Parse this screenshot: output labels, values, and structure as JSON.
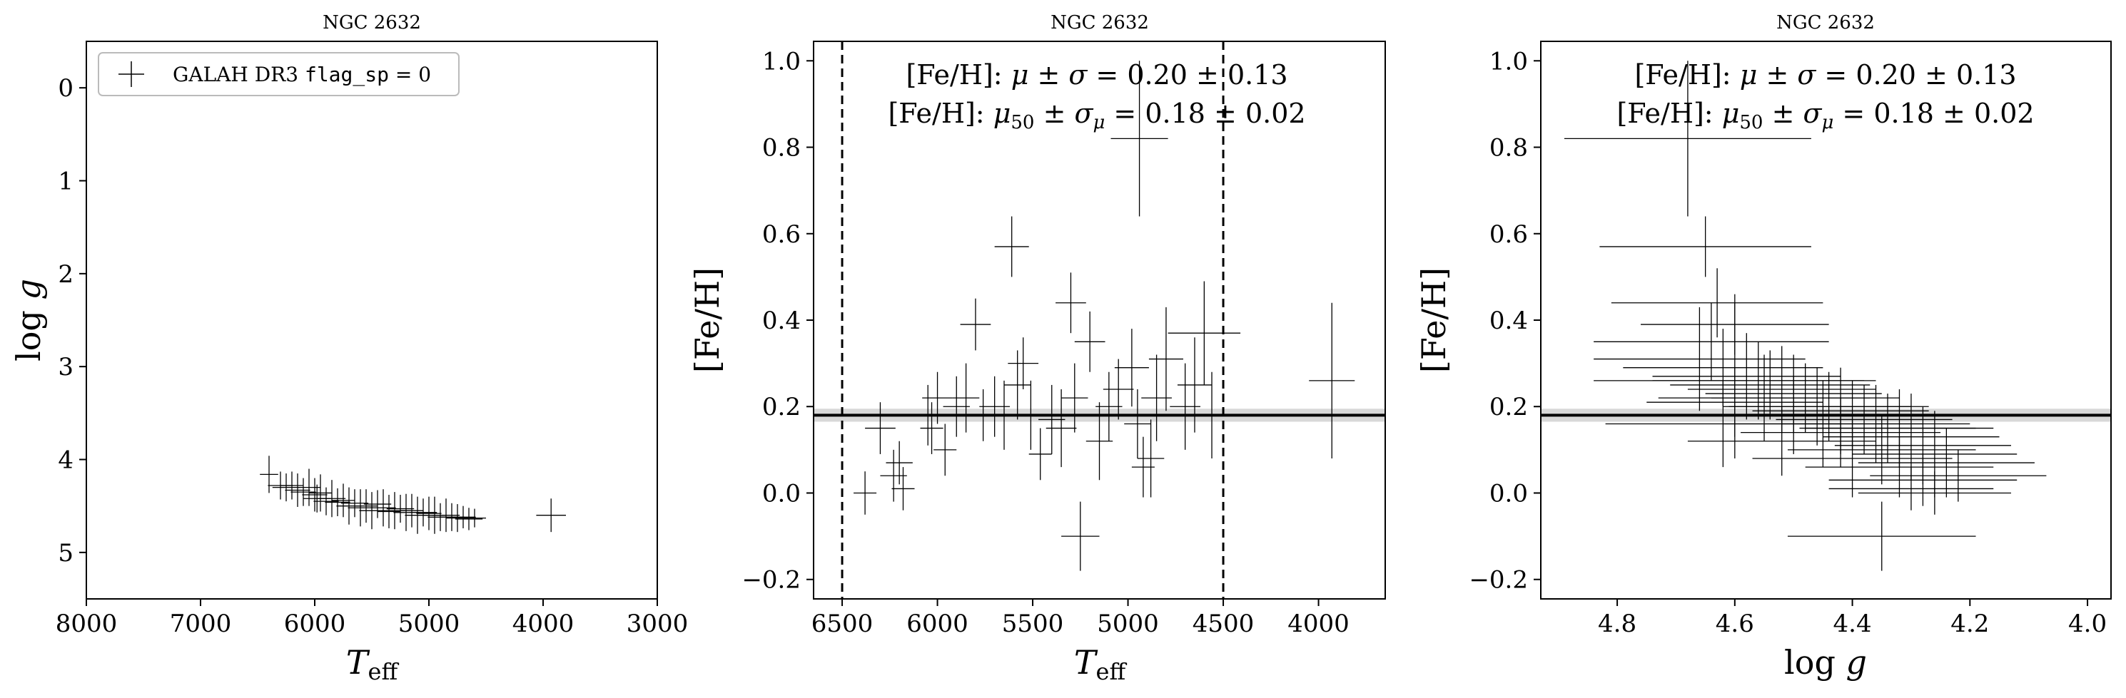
{
  "chart_data": [
    {
      "type": "scatter",
      "title": "NGC 2632",
      "xlabel": "T_eff",
      "ylabel": "log g",
      "xlim": [
        8000,
        3000
      ],
      "ylim": [
        5.5,
        -0.5
      ],
      "xticks": [
        8000,
        7000,
        6000,
        5000,
        4000,
        3000
      ],
      "yticks": [
        0,
        1,
        2,
        3,
        4,
        5
      ],
      "legend": {
        "location": "upper-left",
        "label_prefix": "GALAH DR3 ",
        "label_code": "flag_sp",
        "label_suffix": " = 0"
      },
      "series": [
        {
          "name": "GALAH DR3 flag_sp = 0",
          "points": [
            {
              "x": 6400,
              "y": 4.16,
              "xerr": 80,
              "yerr": 0.2
            },
            {
              "x": 6300,
              "y": 4.28,
              "xerr": 110,
              "yerr": 0.15
            },
            {
              "x": 6250,
              "y": 4.3,
              "xerr": 120,
              "yerr": 0.15
            },
            {
              "x": 6200,
              "y": 4.28,
              "xerr": 100,
              "yerr": 0.15
            },
            {
              "x": 6150,
              "y": 4.33,
              "xerr": 110,
              "yerr": 0.18
            },
            {
              "x": 6100,
              "y": 4.35,
              "xerr": 110,
              "yerr": 0.15
            },
            {
              "x": 6050,
              "y": 4.3,
              "xerr": 100,
              "yerr": 0.2
            },
            {
              "x": 6000,
              "y": 4.38,
              "xerr": 110,
              "yerr": 0.18
            },
            {
              "x": 5980,
              "y": 4.42,
              "xerr": 120,
              "yerr": 0.15
            },
            {
              "x": 5950,
              "y": 4.36,
              "xerr": 100,
              "yerr": 0.2
            },
            {
              "x": 5900,
              "y": 4.45,
              "xerr": 110,
              "yerr": 0.15
            },
            {
              "x": 5850,
              "y": 4.42,
              "xerr": 120,
              "yerr": 0.2
            },
            {
              "x": 5800,
              "y": 4.46,
              "xerr": 110,
              "yerr": 0.15
            },
            {
              "x": 5750,
              "y": 4.44,
              "xerr": 100,
              "yerr": 0.18
            },
            {
              "x": 5700,
              "y": 4.5,
              "xerr": 110,
              "yerr": 0.2
            },
            {
              "x": 5650,
              "y": 4.47,
              "xerr": 120,
              "yerr": 0.15
            },
            {
              "x": 5600,
              "y": 4.52,
              "xerr": 110,
              "yerr": 0.2
            },
            {
              "x": 5550,
              "y": 4.5,
              "xerr": 100,
              "yerr": 0.18
            },
            {
              "x": 5500,
              "y": 4.55,
              "xerr": 110,
              "yerr": 0.2
            },
            {
              "x": 5450,
              "y": 4.48,
              "xerr": 120,
              "yerr": 0.15
            },
            {
              "x": 5400,
              "y": 4.52,
              "xerr": 110,
              "yerr": 0.2
            },
            {
              "x": 5350,
              "y": 4.56,
              "xerr": 100,
              "yerr": 0.18
            },
            {
              "x": 5300,
              "y": 4.55,
              "xerr": 110,
              "yerr": 0.2
            },
            {
              "x": 5250,
              "y": 4.53,
              "xerr": 120,
              "yerr": 0.15
            },
            {
              "x": 5200,
              "y": 4.57,
              "xerr": 110,
              "yerr": 0.2
            },
            {
              "x": 5150,
              "y": 4.55,
              "xerr": 100,
              "yerr": 0.18
            },
            {
              "x": 5100,
              "y": 4.6,
              "xerr": 110,
              "yerr": 0.2
            },
            {
              "x": 5050,
              "y": 4.57,
              "xerr": 120,
              "yerr": 0.15
            },
            {
              "x": 5000,
              "y": 4.58,
              "xerr": 110,
              "yerr": 0.18
            },
            {
              "x": 4950,
              "y": 4.6,
              "xerr": 100,
              "yerr": 0.2
            },
            {
              "x": 4900,
              "y": 4.62,
              "xerr": 110,
              "yerr": 0.15
            },
            {
              "x": 4850,
              "y": 4.6,
              "xerr": 120,
              "yerr": 0.18
            },
            {
              "x": 4800,
              "y": 4.62,
              "xerr": 110,
              "yerr": 0.15
            },
            {
              "x": 4750,
              "y": 4.63,
              "xerr": 100,
              "yerr": 0.15
            },
            {
              "x": 4700,
              "y": 4.62,
              "xerr": 110,
              "yerr": 0.12
            },
            {
              "x": 4650,
              "y": 4.64,
              "xerr": 120,
              "yerr": 0.12
            },
            {
              "x": 4600,
              "y": 4.63,
              "xerr": 100,
              "yerr": 0.1
            },
            {
              "x": 3930,
              "y": 4.6,
              "xerr": 130,
              "yerr": 0.18
            }
          ]
        }
      ]
    },
    {
      "type": "scatter",
      "title": "NGC 2632",
      "xlabel": "T_eff",
      "ylabel": "[Fe/H]",
      "xlim": [
        6650,
        3650
      ],
      "ylim": [
        -0.245,
        1.045
      ],
      "xticks": [
        6500,
        6000,
        5500,
        5000,
        4500,
        4000
      ],
      "yticks": [
        -0.2,
        0.0,
        0.2,
        0.4,
        0.6,
        0.8,
        1.0
      ],
      "annotations": [
        "[Fe/H]: μ ± σ = 0.20 ± 0.13",
        "[Fe/H]: μ50 ± σμ = 0.18 ± 0.02"
      ],
      "median": 0.18,
      "median_band": [
        0.165,
        0.195
      ],
      "vlines": [
        6500,
        4500
      ],
      "series": [
        {
          "points": [
            {
              "x": 6380,
              "y": 0.0,
              "xerr": 60,
              "yerr": 0.05
            },
            {
              "x": 6300,
              "y": 0.15,
              "xerr": 80,
              "yerr": 0.06
            },
            {
              "x": 6230,
              "y": 0.04,
              "xerr": 70,
              "yerr": 0.06
            },
            {
              "x": 6200,
              "y": 0.07,
              "xerr": 70,
              "yerr": 0.05
            },
            {
              "x": 6180,
              "y": 0.01,
              "xerr": 60,
              "yerr": 0.05
            },
            {
              "x": 6050,
              "y": 0.18,
              "xerr": 70,
              "yerr": 0.07
            },
            {
              "x": 6030,
              "y": 0.15,
              "xerr": 60,
              "yerr": 0.06
            },
            {
              "x": 6000,
              "y": 0.22,
              "xerr": 80,
              "yerr": 0.06
            },
            {
              "x": 5960,
              "y": 0.1,
              "xerr": 60,
              "yerr": 0.06
            },
            {
              "x": 5900,
              "y": 0.2,
              "xerr": 70,
              "yerr": 0.07
            },
            {
              "x": 5850,
              "y": 0.22,
              "xerr": 70,
              "yerr": 0.08
            },
            {
              "x": 5800,
              "y": 0.39,
              "xerr": 80,
              "yerr": 0.06
            },
            {
              "x": 5760,
              "y": 0.18,
              "xerr": 60,
              "yerr": 0.06
            },
            {
              "x": 5700,
              "y": 0.2,
              "xerr": 80,
              "yerr": 0.07
            },
            {
              "x": 5650,
              "y": 0.18,
              "xerr": 70,
              "yerr": 0.08
            },
            {
              "x": 5610,
              "y": 0.57,
              "xerr": 90,
              "yerr": 0.07
            },
            {
              "x": 5580,
              "y": 0.25,
              "xerr": 70,
              "yerr": 0.08
            },
            {
              "x": 5550,
              "y": 0.3,
              "xerr": 80,
              "yerr": 0.06
            },
            {
              "x": 5510,
              "y": 0.18,
              "xerr": 70,
              "yerr": 0.08
            },
            {
              "x": 5460,
              "y": 0.09,
              "xerr": 60,
              "yerr": 0.06
            },
            {
              "x": 5400,
              "y": 0.17,
              "xerr": 70,
              "yerr": 0.08
            },
            {
              "x": 5350,
              "y": 0.15,
              "xerr": 80,
              "yerr": 0.09
            },
            {
              "x": 5300,
              "y": 0.44,
              "xerr": 80,
              "yerr": 0.07
            },
            {
              "x": 5280,
              "y": 0.22,
              "xerr": 70,
              "yerr": 0.08
            },
            {
              "x": 5250,
              "y": -0.1,
              "xerr": 100,
              "yerr": 0.08
            },
            {
              "x": 5200,
              "y": 0.35,
              "xerr": 80,
              "yerr": 0.07
            },
            {
              "x": 5150,
              "y": 0.12,
              "xerr": 70,
              "yerr": 0.09
            },
            {
              "x": 5100,
              "y": 0.2,
              "xerr": 70,
              "yerr": 0.08
            },
            {
              "x": 5050,
              "y": 0.24,
              "xerr": 80,
              "yerr": 0.07
            },
            {
              "x": 4980,
              "y": 0.29,
              "xerr": 90,
              "yerr": 0.09
            },
            {
              "x": 4950,
              "y": 0.16,
              "xerr": 70,
              "yerr": 0.08
            },
            {
              "x": 4940,
              "y": 0.82,
              "xerr": 150,
              "yerr": 0.18
            },
            {
              "x": 4920,
              "y": 0.06,
              "xerr": 60,
              "yerr": 0.07
            },
            {
              "x": 4880,
              "y": 0.08,
              "xerr": 70,
              "yerr": 0.09
            },
            {
              "x": 4850,
              "y": 0.22,
              "xerr": 80,
              "yerr": 0.1
            },
            {
              "x": 4800,
              "y": 0.31,
              "xerr": 90,
              "yerr": 0.12
            },
            {
              "x": 4700,
              "y": 0.2,
              "xerr": 80,
              "yerr": 0.1
            },
            {
              "x": 4650,
              "y": 0.25,
              "xerr": 90,
              "yerr": 0.11
            },
            {
              "x": 4600,
              "y": 0.37,
              "xerr": 190,
              "yerr": 0.12
            },
            {
              "x": 4560,
              "y": 0.18,
              "xerr": 80,
              "yerr": 0.1
            },
            {
              "x": 3930,
              "y": 0.26,
              "xerr": 120,
              "yerr": 0.18
            }
          ]
        }
      ]
    },
    {
      "type": "scatter",
      "title": "NGC 2632",
      "xlabel": "log g",
      "ylabel": "[Fe/H]",
      "xlim": [
        4.93,
        3.96
      ],
      "ylim": [
        -0.245,
        1.045
      ],
      "xticks": [
        4.8,
        4.6,
        4.4,
        4.2,
        4.0
      ],
      "yticks": [
        -0.2,
        0.0,
        0.2,
        0.4,
        0.6,
        0.8,
        1.0
      ],
      "annotations": [
        "[Fe/H]: μ ± σ = 0.20 ± 0.13",
        "[Fe/H]: μ50 ± σμ = 0.18 ± 0.02"
      ],
      "median": 0.18,
      "median_band": [
        0.165,
        0.195
      ],
      "series": [
        {
          "points": [
            {
              "x": 4.68,
              "y": 0.82,
              "xerr": 0.21,
              "yerr": 0.18
            },
            {
              "x": 4.65,
              "y": 0.57,
              "xerr": 0.18,
              "yerr": 0.07
            },
            {
              "x": 4.63,
              "y": 0.44,
              "xerr": 0.18,
              "yerr": 0.08
            },
            {
              "x": 4.6,
              "y": 0.39,
              "xerr": 0.16,
              "yerr": 0.07
            },
            {
              "x": 4.64,
              "y": 0.35,
              "xerr": 0.2,
              "yerr": 0.09
            },
            {
              "x": 4.66,
              "y": 0.31,
              "xerr": 0.18,
              "yerr": 0.12
            },
            {
              "x": 4.62,
              "y": 0.29,
              "xerr": 0.17,
              "yerr": 0.09
            },
            {
              "x": 4.58,
              "y": 0.27,
              "xerr": 0.16,
              "yerr": 0.1
            },
            {
              "x": 4.56,
              "y": 0.26,
              "xerr": 0.18,
              "yerr": 0.09
            },
            {
              "x": 4.54,
              "y": 0.25,
              "xerr": 0.17,
              "yerr": 0.08
            },
            {
              "x": 4.52,
              "y": 0.24,
              "xerr": 0.16,
              "yerr": 0.1
            },
            {
              "x": 4.5,
              "y": 0.23,
              "xerr": 0.15,
              "yerr": 0.09
            },
            {
              "x": 4.48,
              "y": 0.22,
              "xerr": 0.16,
              "yerr": 0.08
            },
            {
              "x": 4.55,
              "y": 0.22,
              "xerr": 0.18,
              "yerr": 0.1
            },
            {
              "x": 4.6,
              "y": 0.21,
              "xerr": 0.15,
              "yerr": 0.08
            },
            {
              "x": 4.46,
              "y": 0.2,
              "xerr": 0.16,
              "yerr": 0.09
            },
            {
              "x": 4.44,
              "y": 0.2,
              "xerr": 0.17,
              "yerr": 0.08
            },
            {
              "x": 4.42,
              "y": 0.19,
              "xerr": 0.15,
              "yerr": 0.1
            },
            {
              "x": 4.4,
              "y": 0.18,
              "xerr": 0.16,
              "yerr": 0.08
            },
            {
              "x": 4.5,
              "y": 0.18,
              "xerr": 0.18,
              "yerr": 0.09
            },
            {
              "x": 4.38,
              "y": 0.17,
              "xerr": 0.15,
              "yerr": 0.08
            },
            {
              "x": 4.36,
              "y": 0.16,
              "xerr": 0.16,
              "yerr": 0.09
            },
            {
              "x": 4.45,
              "y": 0.16,
              "xerr": 0.17,
              "yerr": 0.1
            },
            {
              "x": 4.34,
              "y": 0.15,
              "xerr": 0.15,
              "yerr": 0.08
            },
            {
              "x": 4.32,
              "y": 0.15,
              "xerr": 0.16,
              "yerr": 0.09
            },
            {
              "x": 4.42,
              "y": 0.14,
              "xerr": 0.17,
              "yerr": 0.08
            },
            {
              "x": 4.3,
              "y": 0.13,
              "xerr": 0.15,
              "yerr": 0.1
            },
            {
              "x": 4.52,
              "y": 0.12,
              "xerr": 0.16,
              "yerr": 0.08
            },
            {
              "x": 4.28,
              "y": 0.11,
              "xerr": 0.15,
              "yerr": 0.09
            },
            {
              "x": 4.35,
              "y": 0.1,
              "xerr": 0.16,
              "yerr": 0.08
            },
            {
              "x": 4.26,
              "y": 0.09,
              "xerr": 0.14,
              "yerr": 0.1
            },
            {
              "x": 4.4,
              "y": 0.08,
              "xerr": 0.17,
              "yerr": 0.09
            },
            {
              "x": 4.24,
              "y": 0.07,
              "xerr": 0.15,
              "yerr": 0.08
            },
            {
              "x": 4.32,
              "y": 0.06,
              "xerr": 0.16,
              "yerr": 0.07
            },
            {
              "x": 4.22,
              "y": 0.04,
              "xerr": 0.15,
              "yerr": 0.06
            },
            {
              "x": 4.28,
              "y": 0.03,
              "xerr": 0.16,
              "yerr": 0.06
            },
            {
              "x": 4.3,
              "y": 0.01,
              "xerr": 0.14,
              "yerr": 0.05
            },
            {
              "x": 4.26,
              "y": 0.0,
              "xerr": 0.13,
              "yerr": 0.05
            },
            {
              "x": 4.35,
              "y": -0.1,
              "xerr": 0.16,
              "yerr": 0.08
            },
            {
              "x": 4.6,
              "y": 0.26,
              "xerr": 0.24,
              "yerr": 0.18
            },
            {
              "x": 4.62,
              "y": 0.16,
              "xerr": 0.2,
              "yerr": 0.1
            }
          ]
        }
      ]
    }
  ]
}
